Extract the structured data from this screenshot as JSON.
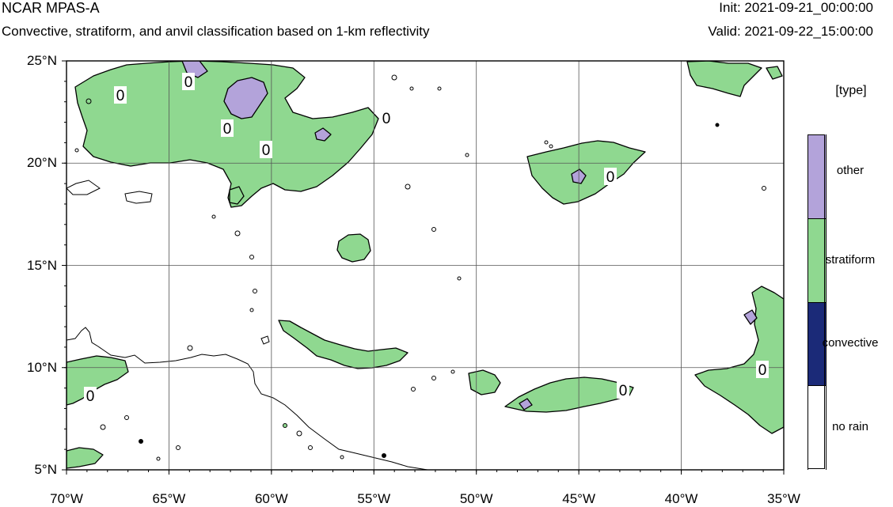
{
  "header": {
    "title": "NCAR MPAS-A",
    "subtitle": "Convective, stratiform, and anvil classification based on 1-km reflectivity",
    "init": "Init: 2021-09-21_00:00:00",
    "valid": "Valid: 2021-09-22_15:00:00"
  },
  "axes": {
    "lat_ticks": [
      "25°N",
      "20°N",
      "15°N",
      "10°N",
      "5°N"
    ],
    "lon_ticks": [
      "70°W",
      "65°W",
      "60°W",
      "55°W",
      "50°W",
      "45°W",
      "40°W",
      "35°W"
    ],
    "lat_range": [
      5,
      25
    ],
    "lon_range": [
      -70,
      -35
    ],
    "grid": true
  },
  "legend": {
    "title": "[type]",
    "items": [
      {
        "label": "other",
        "color": "#b3a3da"
      },
      {
        "label": "stratiform",
        "color": "#8fd890"
      },
      {
        "label": "convective",
        "color": "#1b2a78"
      },
      {
        "label": "no rain",
        "color": "#ffffff"
      }
    ]
  },
  "contour_labels": [
    "0",
    "0",
    "0",
    "0",
    "0",
    "0",
    "0",
    "0",
    "0"
  ]
}
